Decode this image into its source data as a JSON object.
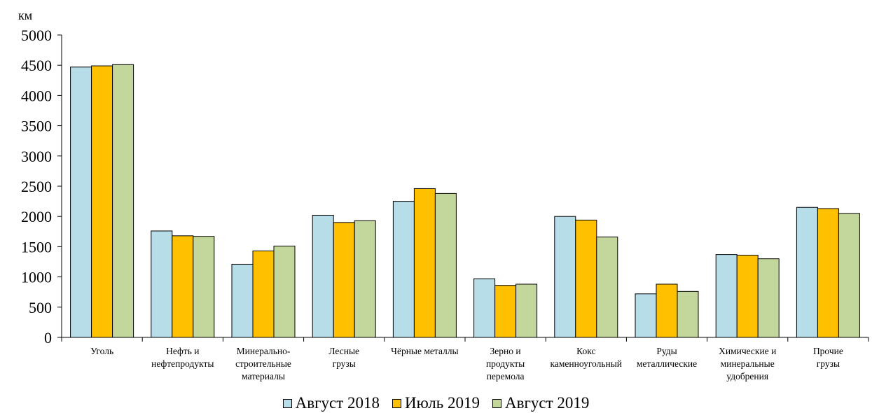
{
  "chart_data": {
    "type": "bar",
    "unit_label": "км",
    "categories": [
      [
        "Уголь"
      ],
      [
        "Нефть и",
        "нефтепродукты"
      ],
      [
        "Минерально-",
        "строительные",
        "материалы"
      ],
      [
        "Лесные",
        "грузы"
      ],
      [
        "Чёрные металлы"
      ],
      [
        "Зерно и",
        "продукты",
        "перемола"
      ],
      [
        "Кокс",
        "каменноугольный"
      ],
      [
        "Руды",
        "металлические"
      ],
      [
        "Химические и",
        "минеральные",
        "удобрения"
      ],
      [
        "Прочие",
        "грузы"
      ]
    ],
    "series": [
      {
        "name": "Август 2018",
        "color": "#b7dde8",
        "values": [
          4470,
          1760,
          1210,
          2020,
          2250,
          970,
          2000,
          720,
          1370,
          2150
        ]
      },
      {
        "name": "Июль 2019",
        "color": "#ffc000",
        "values": [
          4490,
          1680,
          1430,
          1900,
          2460,
          860,
          1940,
          880,
          1360,
          2130
        ]
      },
      {
        "name": "Август 2019",
        "color": "#c3d69b",
        "values": [
          4510,
          1670,
          1510,
          1930,
          2380,
          880,
          1660,
          760,
          1300,
          2050
        ]
      }
    ],
    "ylim": [
      0,
      5000
    ],
    "yticks": [
      0,
      500,
      1000,
      1500,
      2000,
      2500,
      3000,
      3500,
      4000,
      4500,
      5000
    ],
    "grid": false,
    "legend_position": "bottom"
  }
}
